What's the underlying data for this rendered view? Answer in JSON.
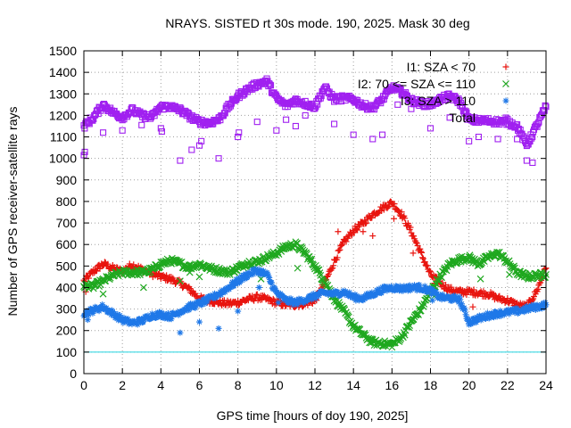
{
  "colors": {
    "i1": "#e8140f",
    "i2": "#1fa81f",
    "i3": "#1f78e8",
    "total": "#a020f0",
    "threshold": "#22d4e0",
    "grid": "#a0a0a0"
  },
  "chart_data": {
    "type": "scatter",
    "title": "NRAYS. SISTED rt 30s mode. 190, 2025. Mask 30 deg",
    "xlabel": "GPS time [hours of doy 190, 2025]",
    "ylabel": "Number of GPS receiver-satellite rays",
    "xlim": [
      0,
      24
    ],
    "ylim": [
      0,
      1500
    ],
    "xticks": [
      "0",
      "2",
      "4",
      "6",
      "8",
      "10",
      "12",
      "14",
      "16",
      "18",
      "20",
      "22",
      "24"
    ],
    "yticks": [
      "0",
      "100",
      "200",
      "300",
      "400",
      "500",
      "600",
      "700",
      "800",
      "900",
      "1000",
      "1100",
      "1200",
      "1300",
      "1400",
      "1500"
    ],
    "grid": true,
    "legend_position": "top-right",
    "threshold": {
      "value": 100
    },
    "series": [
      {
        "key": "i1",
        "name": "I1: SZA < 70",
        "marker": "+",
        "x": [
          0,
          0.5,
          1,
          1.5,
          2,
          2.5,
          3,
          3.5,
          4,
          4.5,
          5,
          5.5,
          6,
          6.5,
          7,
          7.5,
          8,
          8.5,
          9,
          9.5,
          10,
          10.5,
          11,
          11.5,
          12,
          12.5,
          13,
          13.5,
          14,
          14.5,
          15,
          15.5,
          16,
          16.5,
          17,
          17.5,
          18,
          18.5,
          19,
          19.5,
          20,
          20.5,
          21,
          21.5,
          22,
          22.5,
          23,
          23.5,
          24
        ],
        "y": [
          430,
          475,
          510,
          490,
          475,
          505,
          485,
          465,
          450,
          440,
          420,
          390,
          350,
          340,
          330,
          325,
          330,
          345,
          355,
          345,
          330,
          320,
          320,
          325,
          340,
          420,
          520,
          610,
          665,
          700,
          740,
          770,
          795,
          740,
          660,
          560,
          460,
          420,
          390,
          380,
          380,
          375,
          370,
          350,
          340,
          320,
          310,
          380,
          490
        ]
      },
      {
        "key": "i2",
        "name": "I2: 70 <= SZA <= 110",
        "marker": "x",
        "x": [
          0,
          0.5,
          1,
          1.5,
          2,
          2.5,
          3,
          3.5,
          4,
          4.5,
          5,
          5.5,
          6,
          6.5,
          7,
          7.5,
          8,
          8.5,
          9,
          9.5,
          10,
          10.5,
          11,
          11.5,
          12,
          12.5,
          13,
          13.5,
          14,
          14.5,
          15,
          15.5,
          16,
          16.5,
          17,
          17.5,
          18,
          18.5,
          19,
          19.5,
          20,
          20.5,
          21,
          21.5,
          22,
          22.5,
          23,
          23.5,
          24
        ],
        "y": [
          410,
          405,
          430,
          455,
          470,
          470,
          470,
          480,
          510,
          525,
          510,
          495,
          510,
          490,
          480,
          470,
          490,
          515,
          520,
          540,
          560,
          590,
          600,
          560,
          500,
          430,
          350,
          290,
          220,
          180,
          145,
          140,
          135,
          170,
          240,
          300,
          380,
          450,
          510,
          530,
          540,
          510,
          540,
          560,
          520,
          470,
          450,
          455,
          460
        ]
      },
      {
        "key": "i3",
        "name": "I3: SZA > 110",
        "marker": "*",
        "x": [
          0,
          0.5,
          1,
          1.5,
          2,
          2.5,
          3,
          3.5,
          4,
          4.5,
          5,
          5.5,
          6,
          6.5,
          7,
          7.5,
          8,
          8.5,
          9,
          9.5,
          10,
          10.5,
          11,
          11.5,
          12,
          12.5,
          13,
          13.5,
          14,
          14.5,
          15,
          15.5,
          16,
          16.5,
          17,
          17.5,
          18,
          18.5,
          19,
          19.5,
          20,
          20.5,
          21,
          21.5,
          22,
          22.5,
          23,
          23.5,
          24
        ],
        "y": [
          280,
          295,
          310,
          280,
          250,
          235,
          245,
          270,
          275,
          265,
          290,
          310,
          325,
          345,
          370,
          400,
          430,
          460,
          480,
          460,
          375,
          340,
          330,
          345,
          360,
          375,
          370,
          380,
          355,
          350,
          370,
          390,
          400,
          395,
          400,
          400,
          385,
          355,
          350,
          345,
          240,
          255,
          270,
          280,
          285,
          290,
          300,
          310,
          320
        ]
      },
      {
        "key": "total",
        "name": "Total",
        "marker": "square",
        "x": [
          0,
          0.5,
          1,
          1.5,
          2,
          2.5,
          3,
          3.5,
          4,
          4.5,
          5,
          5.5,
          6,
          6.5,
          7,
          7.5,
          8,
          8.5,
          9,
          9.5,
          10,
          10.5,
          11,
          11.5,
          12,
          12.5,
          13,
          13.5,
          14,
          14.5,
          15,
          15.5,
          16,
          16.5,
          17,
          17.5,
          18,
          18.5,
          19,
          19.5,
          20,
          20.5,
          21,
          21.5,
          22,
          22.5,
          23,
          23.5,
          24
        ],
        "y": [
          1150,
          1190,
          1250,
          1215,
          1190,
          1225,
          1200,
          1190,
          1240,
          1240,
          1225,
          1195,
          1170,
          1165,
          1180,
          1240,
          1290,
          1320,
          1345,
          1360,
          1280,
          1245,
          1270,
          1255,
          1240,
          1330,
          1275,
          1280,
          1275,
          1245,
          1235,
          1275,
          1330,
          1310,
          1270,
          1255,
          1250,
          1275,
          1290,
          1265,
          1180,
          1175,
          1175,
          1170,
          1170,
          1150,
          1060,
          1150,
          1240
        ]
      }
    ],
    "outliers": {
      "i1": {
        "x": [
          0.1,
          2.2,
          4.5,
          13.2,
          14.5,
          15,
          16.1,
          17.1,
          18.2,
          20.2,
          22.8
        ],
        "y": [
          380,
          490,
          430,
          660,
          660,
          640,
          720,
          560,
          420,
          310,
          300
        ]
      },
      "i2": {
        "x": [
          1.0,
          2.5,
          3.1,
          5.0,
          5.5,
          6.0,
          9.2,
          11.1,
          18.2,
          20.6,
          22.1
        ],
        "y": [
          370,
          460,
          400,
          430,
          470,
          450,
          440,
          490,
          360,
          440,
          460
        ]
      },
      "i3": {
        "x": [
          0.2,
          4.0,
          5.0,
          6.0,
          7.0,
          8.0,
          9.1,
          10.1,
          18.1,
          20.1
        ],
        "y": [
          250,
          270,
          190,
          240,
          210,
          290,
          400,
          330,
          340,
          230
        ]
      },
      "total": {
        "x": [
          0,
          0.05,
          1.0,
          2.0,
          3.0,
          4.0,
          4.05,
          5.0,
          5.6,
          6.0,
          6.1,
          7.0,
          8.0,
          8.05,
          9.0,
          10.0,
          10.5,
          11.0,
          11.5,
          13.0,
          14.0,
          15.0,
          15.5,
          16.3,
          17.0,
          18.0,
          19.0,
          20.0,
          20.5,
          21.5,
          22.5,
          23.0,
          23.3
        ],
        "y": [
          1015,
          1030,
          1120,
          1130,
          1155,
          1140,
          1125,
          990,
          1040,
          1060,
          1080,
          1000,
          1100,
          1120,
          1170,
          1130,
          1180,
          1150,
          1200,
          1160,
          1110,
          1090,
          1110,
          1250,
          1230,
          1140,
          1190,
          1080,
          1100,
          1090,
          1090,
          990,
          980
        ]
      }
    }
  }
}
